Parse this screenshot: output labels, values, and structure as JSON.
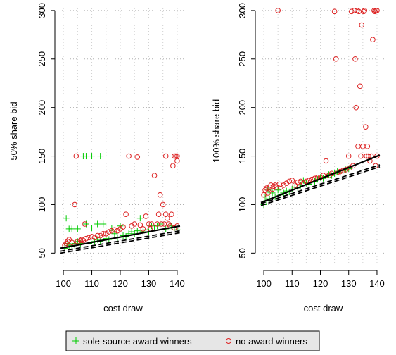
{
  "chart_data": [
    {
      "type": "scatter",
      "xlabel": "cost draw",
      "ylabel": "50% share bid",
      "xlim": [
        98,
        142
      ],
      "ylim": [
        35,
        305
      ],
      "xticks": [
        100,
        110,
        120,
        130,
        140
      ],
      "yticks": [
        50,
        100,
        150,
        200,
        250,
        300
      ],
      "grid": true,
      "series": [
        {
          "name": "sole-source award winners",
          "marker": "plus",
          "color": "#00cc00",
          "points": [
            [
              100.5,
              55
            ],
            [
              101,
              86
            ],
            [
              101.5,
              60
            ],
            [
              102,
              58
            ],
            [
              102,
              75
            ],
            [
              103,
              57
            ],
            [
              103,
              75
            ],
            [
              104,
              58
            ],
            [
              104,
              60
            ],
            [
              105,
              75
            ],
            [
              105,
              62
            ],
            [
              106,
              60
            ],
            [
              107,
              150
            ],
            [
              108,
              80
            ],
            [
              108,
              150
            ],
            [
              109,
              60
            ],
            [
              110,
              150
            ],
            [
              110,
              76
            ],
            [
              111,
              62
            ],
            [
              112,
              64
            ],
            [
              112,
              80
            ],
            [
              113,
              150
            ],
            [
              113,
              62
            ],
            [
              114,
              80
            ],
            [
              115,
              65
            ],
            [
              116,
              64
            ],
            [
              117,
              76
            ],
            [
              118,
              70
            ],
            [
              119,
              66
            ],
            [
              120,
              78
            ],
            [
              121,
              68
            ],
            [
              122,
              67
            ],
            [
              123,
              70
            ],
            [
              124,
              72
            ],
            [
              125,
              70
            ],
            [
              126,
              73
            ],
            [
              127,
              86
            ],
            [
              128,
              72
            ],
            [
              129,
              74
            ],
            [
              130,
              72
            ],
            [
              131,
              78
            ],
            [
              132,
              76
            ],
            [
              133,
              78
            ],
            [
              134,
              80
            ],
            [
              136,
              75
            ],
            [
              138,
              78
            ],
            [
              139,
              76
            ],
            [
              140,
              74
            ]
          ]
        },
        {
          "name": "no award winners",
          "marker": "circle",
          "color": "#dd2222",
          "points": [
            [
              100.5,
              58
            ],
            [
              101,
              60
            ],
            [
              101.5,
              62
            ],
            [
              102,
              64
            ],
            [
              103,
              61
            ],
            [
              104,
              100
            ],
            [
              104.5,
              150
            ],
            [
              105,
              62
            ],
            [
              106,
              63
            ],
            [
              106.5,
              64
            ],
            [
              107,
              63
            ],
            [
              107.5,
              80
            ],
            [
              108,
              65
            ],
            [
              109,
              66
            ],
            [
              110,
              67
            ],
            [
              111,
              66
            ],
            [
              112,
              68
            ],
            [
              113,
              68
            ],
            [
              114,
              70
            ],
            [
              115,
              70
            ],
            [
              116,
              72
            ],
            [
              117,
              73
            ],
            [
              118,
              74
            ],
            [
              119,
              73
            ],
            [
              120,
              75
            ],
            [
              121,
              77
            ],
            [
              122,
              90
            ],
            [
              123,
              150
            ],
            [
              124,
              78
            ],
            [
              125,
              80
            ],
            [
              126,
              149
            ],
            [
              127,
              79
            ],
            [
              128,
              75
            ],
            [
              129,
              88
            ],
            [
              130,
              80
            ],
            [
              130.5,
              75
            ],
            [
              131,
              80
            ],
            [
              132,
              130
            ],
            [
              133,
              80
            ],
            [
              133.5,
              90
            ],
            [
              134,
              110
            ],
            [
              134.5,
              80
            ],
            [
              135,
              100
            ],
            [
              135.5,
              80
            ],
            [
              136,
              150
            ],
            [
              136,
              90
            ],
            [
              136.5,
              86
            ],
            [
              137,
              80
            ],
            [
              137.5,
              78
            ],
            [
              138,
              90
            ],
            [
              138.5,
              140
            ],
            [
              139,
              150
            ],
            [
              139.5,
              150
            ],
            [
              140,
              150
            ],
            [
              140,
              145
            ],
            [
              140,
              78
            ],
            [
              139,
              76
            ]
          ]
        }
      ],
      "fit_lines": [
        {
          "style": "solid",
          "color": "#000000",
          "points": [
            [
              99,
              55
            ],
            [
              141,
              78
            ]
          ]
        },
        {
          "style": "dashed",
          "color": "#000000",
          "points": [
            [
              99,
              52
            ],
            [
              141,
              73
            ]
          ]
        },
        {
          "style": "dashed",
          "color": "#000000",
          "points": [
            [
              99,
              50
            ],
            [
              141,
              71
            ]
          ]
        }
      ]
    },
    {
      "type": "scatter",
      "xlabel": "cost draw",
      "ylabel": "100% share bid",
      "xlim": [
        98,
        142
      ],
      "ylim": [
        35,
        305
      ],
      "xticks": [
        100,
        110,
        120,
        130,
        140
      ],
      "yticks": [
        50,
        100,
        150,
        200,
        250,
        300
      ],
      "grid": true,
      "series": [
        {
          "name": "sole-source award winners",
          "marker": "plus",
          "color": "#00cc00",
          "points": [
            [
              100,
              100
            ],
            [
              100.5,
              108
            ],
            [
              101,
              104
            ],
            [
              101.5,
              115
            ],
            [
              102,
              106
            ],
            [
              103,
              112
            ],
            [
              104,
              108
            ],
            [
              105,
              115
            ],
            [
              106,
              110
            ],
            [
              107,
              112
            ],
            [
              108,
              114
            ],
            [
              109,
              113
            ],
            [
              110,
              116
            ],
            [
              111,
              118
            ],
            [
              112,
              117
            ],
            [
              113,
              120
            ],
            [
              114,
              125
            ],
            [
              115,
              122
            ],
            [
              116,
              121
            ],
            [
              117,
              123
            ],
            [
              118,
              124
            ],
            [
              119,
              126
            ],
            [
              120,
              128
            ],
            [
              121,
              127
            ],
            [
              122,
              129
            ],
            [
              123,
              131
            ],
            [
              124,
              130
            ],
            [
              125,
              132
            ],
            [
              126,
              134
            ],
            [
              127,
              133
            ],
            [
              128,
              135
            ],
            [
              129,
              136
            ],
            [
              130,
              137
            ]
          ]
        },
        {
          "name": "no award winners",
          "marker": "circle",
          "color": "#dd2222",
          "points": [
            [
              100,
              110
            ],
            [
              100.5,
              115
            ],
            [
              101,
              117
            ],
            [
              101.5,
              112
            ],
            [
              102,
              118
            ],
            [
              102.5,
              120
            ],
            [
              103,
              116
            ],
            [
              103.5,
              119
            ],
            [
              104,
              120
            ],
            [
              104.5,
              118
            ],
            [
              105,
              300
            ],
            [
              105.5,
              121
            ],
            [
              106,
              118
            ],
            [
              107,
              120
            ],
            [
              108,
              122
            ],
            [
              109,
              124
            ],
            [
              110,
              125
            ],
            [
              111,
              120
            ],
            [
              112,
              123
            ],
            [
              113,
              124
            ],
            [
              114,
              122
            ],
            [
              115,
              124
            ],
            [
              116,
              125
            ],
            [
              117,
              126
            ],
            [
              118,
              127
            ],
            [
              119,
              128
            ],
            [
              120,
              128
            ],
            [
              121,
              130
            ],
            [
              122,
              145
            ],
            [
              123,
              130
            ],
            [
              124,
              132
            ],
            [
              125,
              299
            ],
            [
              125.5,
              250
            ],
            [
              126,
              133
            ],
            [
              127,
              134
            ],
            [
              128,
              135
            ],
            [
              129,
              136
            ],
            [
              130,
              150
            ],
            [
              130.5,
              138
            ],
            [
              131,
              299
            ],
            [
              131.5,
              140
            ],
            [
              132,
              300
            ],
            [
              132.3,
              250
            ],
            [
              132.6,
              200
            ],
            [
              133,
              300
            ],
            [
              133.3,
              160
            ],
            [
              133.6,
              299
            ],
            [
              134,
              222
            ],
            [
              134.3,
              150
            ],
            [
              134.6,
              285
            ],
            [
              135,
              160
            ],
            [
              135.3,
              299
            ],
            [
              135.6,
              300
            ],
            [
              136,
              180
            ],
            [
              136.3,
              150
            ],
            [
              136.6,
              160
            ],
            [
              137,
              150
            ],
            [
              137.5,
              145
            ],
            [
              138,
              150
            ],
            [
              138.5,
              270
            ],
            [
              139,
              300
            ],
            [
              139.3,
              299
            ],
            [
              139.6,
              300
            ],
            [
              140,
              300
            ],
            [
              140,
              150
            ],
            [
              139.5,
              140
            ]
          ]
        }
      ],
      "fit_lines": [
        {
          "style": "solid",
          "color": "#000000",
          "points": [
            [
              99,
              102
            ],
            [
              141,
              151
            ]
          ]
        },
        {
          "style": "dashed",
          "color": "#000000",
          "points": [
            [
              99,
              101
            ],
            [
              141,
              141
            ]
          ]
        },
        {
          "style": "dashed",
          "color": "#000000",
          "points": [
            [
              99,
              99
            ],
            [
              141,
              139
            ]
          ]
        }
      ]
    }
  ],
  "legend": {
    "items": [
      {
        "label": "sole-source award winners",
        "marker": "plus",
        "color": "#00cc00"
      },
      {
        "label": "no award winners",
        "marker": "circle",
        "color": "#dd2222"
      }
    ]
  }
}
